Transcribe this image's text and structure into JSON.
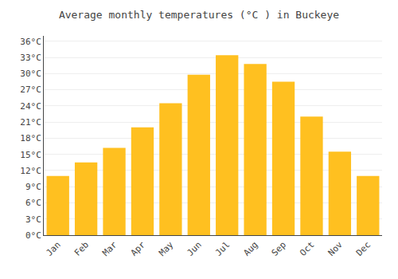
{
  "chart_data": {
    "type": "bar",
    "title": "Average monthly temperatures (°C ) in Buckeye",
    "categories": [
      "Jan",
      "Feb",
      "Mar",
      "Apr",
      "May",
      "Jun",
      "Jul",
      "Aug",
      "Sep",
      "Oct",
      "Nov",
      "Dec"
    ],
    "values": [
      11.0,
      13.5,
      16.2,
      20.0,
      24.5,
      29.8,
      33.4,
      31.8,
      28.5,
      22.0,
      15.5,
      11.0
    ],
    "color": "#FFC020",
    "ylim": [
      0,
      37
    ],
    "yticks": [
      {
        "value": 0,
        "label": "0°C"
      },
      {
        "value": 3,
        "label": "3°C"
      },
      {
        "value": 6,
        "label": "6°C"
      },
      {
        "value": 9,
        "label": "9°C"
      },
      {
        "value": 12,
        "label": "12°C"
      },
      {
        "value": 15,
        "label": "15°C"
      },
      {
        "value": 18,
        "label": "18°C"
      },
      {
        "value": 21,
        "label": "21°C"
      },
      {
        "value": 24,
        "label": "24°C"
      },
      {
        "value": 27,
        "label": "27°C"
      },
      {
        "value": 30,
        "label": "30°C"
      },
      {
        "value": 33,
        "label": "33°C"
      },
      {
        "value": 36,
        "label": "36°C"
      }
    ],
    "grid": true
  }
}
